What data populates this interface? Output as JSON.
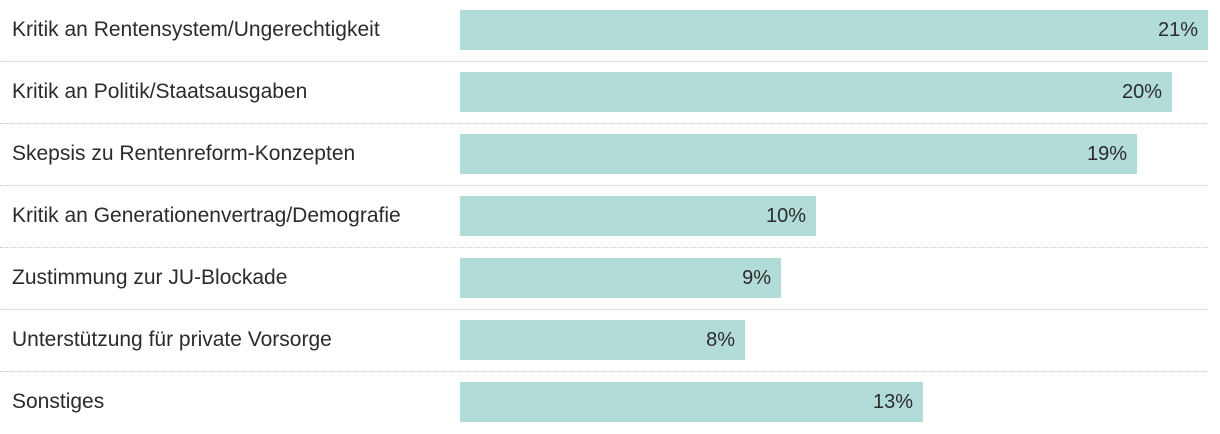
{
  "chart_data": {
    "type": "bar",
    "orientation": "horizontal",
    "categories": [
      "Kritik an Rentensystem/Ungerechtigkeit",
      "Kritik an Politik/Staatsausgaben",
      "Skepsis zu Rentenreform-Konzepten",
      "Kritik an Generationenvertrag/Demografie",
      "Zustimmung zur JU-Blockade",
      "Unterstützung für private Vorsorge",
      "Sonstiges"
    ],
    "values": [
      21,
      20,
      19,
      10,
      9,
      8,
      13
    ],
    "value_labels": [
      "21%",
      "20%",
      "19%",
      "10%",
      "9%",
      "8%",
      "13%"
    ],
    "unit": "%",
    "xlim": [
      0,
      21
    ],
    "grid": false,
    "bar_color": "#b2dcd8"
  }
}
